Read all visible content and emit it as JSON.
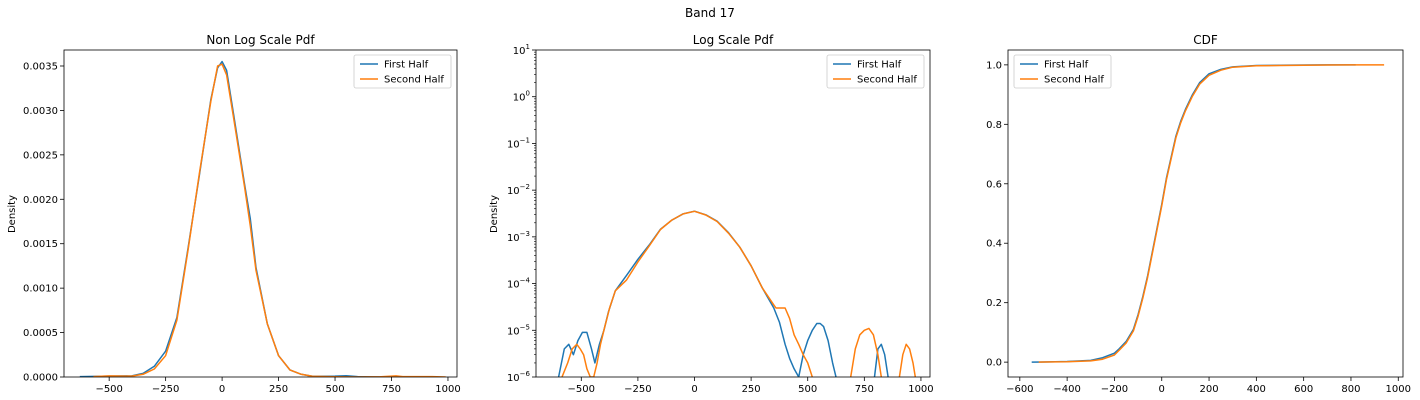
{
  "figure": {
    "title": "Band 17"
  },
  "colors": {
    "first": "#1f77b4",
    "second": "#ff7f0e"
  },
  "chart_data": [
    {
      "type": "line",
      "title": "Non Log Scale Pdf",
      "xlabel": "",
      "ylabel": "Density",
      "xlim": [
        -700,
        1040
      ],
      "ylim": [
        0,
        0.00368
      ],
      "xticks": [
        -500,
        -250,
        0,
        250,
        500,
        750,
        1000
      ],
      "xtick_labels": [
        "−500",
        "−250",
        "0",
        "250",
        "500",
        "750",
        "1000"
      ],
      "yticks": [
        0,
        0.0005,
        0.001,
        0.0015,
        0.002,
        0.0025,
        0.003,
        0.0035
      ],
      "ytick_labels": [
        "0.0000",
        "0.0005",
        "0.0010",
        "0.0015",
        "0.0020",
        "0.0025",
        "0.0030",
        "0.0035"
      ],
      "grid": false,
      "legend": "upper right",
      "series": [
        {
          "name": "First Half",
          "color": "#1f77b4",
          "x": [
            -630,
            -500,
            -400,
            -350,
            -300,
            -250,
            -200,
            -150,
            -100,
            -50,
            -20,
            0,
            20,
            50,
            100,
            125,
            150,
            200,
            250,
            300,
            350,
            400,
            500,
            550,
            600,
            700,
            800,
            850
          ],
          "y": [
            5e-06,
            1e-05,
            1.2e-05,
            4e-05,
            0.00012,
            0.00029,
            0.00067,
            0.00146,
            0.00228,
            0.00312,
            0.00348,
            0.00355,
            0.00345,
            0.00297,
            0.00216,
            0.00178,
            0.00123,
            0.0006,
            0.00024,
            8e-05,
            3e-05,
            8e-06,
            1e-05,
            1.5e-05,
            5e-06,
            0,
            3e-06,
            0
          ]
        },
        {
          "name": "Second Half",
          "color": "#ff7f0e",
          "x": [
            -570,
            -500,
            -400,
            -350,
            -300,
            -250,
            -200,
            -150,
            -100,
            -50,
            -20,
            0,
            20,
            50,
            100,
            125,
            150,
            200,
            250,
            300,
            350,
            400,
            500,
            600,
            700,
            770,
            800,
            930,
            990
          ],
          "y": [
            5e-06,
            1.2e-05,
            1e-05,
            3e-05,
            9e-05,
            0.00024,
            0.00064,
            0.00144,
            0.0023,
            0.0031,
            0.0035,
            0.00352,
            0.0034,
            0.00293,
            0.00213,
            0.0017,
            0.0012,
            0.0006,
            0.00024,
            8e-05,
            3e-05,
            8e-06,
            2e-06,
            0,
            2e-06,
            1.2e-05,
            5e-06,
            5e-06,
            0
          ]
        }
      ]
    },
    {
      "type": "line",
      "title": "Log Scale Pdf",
      "xlabel": "",
      "ylabel": "Density",
      "yscale": "log",
      "xlim": [
        -700,
        1040
      ],
      "ylim": [
        1e-06,
        10
      ],
      "xticks": [
        -500,
        -250,
        0,
        250,
        500,
        750,
        1000
      ],
      "xtick_labels": [
        "−500",
        "−250",
        "0",
        "250",
        "500",
        "750",
        "1000"
      ],
      "yticks": [
        1e-06,
        1e-05,
        0.0001,
        0.001,
        0.01,
        0.1,
        1,
        10
      ],
      "ytick_base": [
        "10",
        "10",
        "10",
        "10",
        "10",
        "10",
        "10",
        "10"
      ],
      "ytick_exp": [
        "−6",
        "−5",
        "−4",
        "−3",
        "−2",
        "−1",
        "0",
        "1"
      ],
      "grid": false,
      "legend": "upper right",
      "series": [
        {
          "name": "First Half",
          "color": "#1f77b4",
          "x": [
            -600,
            -575,
            -555,
            -535,
            -515,
            -495,
            -475,
            -455,
            -440,
            -420,
            -400,
            -380,
            -350,
            -300,
            -250,
            -200,
            -150,
            -100,
            -50,
            0,
            50,
            100,
            150,
            200,
            250,
            300,
            350,
            375,
            400,
            420,
            440,
            460,
            480,
            500,
            520,
            540,
            555,
            570,
            590,
            610,
            625
          ],
          "y": [
            1e-06,
            4e-06,
            5e-06,
            3e-06,
            6e-06,
            9e-06,
            9e-06,
            4e-06,
            2e-06,
            5e-06,
            1e-05,
            2.5e-05,
            7e-05,
            0.00015,
            0.00033,
            0.00067,
            0.00146,
            0.00228,
            0.00312,
            0.00355,
            0.00297,
            0.00216,
            0.00123,
            0.0006,
            0.00024,
            8e-05,
            3e-05,
            1.5e-05,
            5e-06,
            2.5e-06,
            1.5e-06,
            1e-06,
            3e-06,
            6e-06,
            1e-05,
            1.4e-05,
            1.4e-05,
            1.2e-05,
            6e-06,
            2e-06,
            1e-06
          ]
        },
        {
          "name": "First Half",
          "color": "#1f77b4",
          "x": [
            795,
            810,
            825,
            840,
            855
          ],
          "y": [
            1e-06,
            4e-06,
            5e-06,
            3e-06,
            1e-06
          ]
        },
        {
          "name": "Second Half",
          "color": "#ff7f0e",
          "x": [
            -585,
            -560,
            -540,
            -520,
            -505,
            -490,
            -475,
            -460,
            -445,
            -430,
            -415,
            -400,
            -375,
            -350,
            -300,
            -250,
            -200,
            -150,
            -100,
            -50,
            0,
            50,
            100,
            150,
            200,
            250,
            300,
            350,
            360,
            380,
            400,
            420,
            440,
            460,
            480,
            500,
            520
          ],
          "y": [
            1e-06,
            2e-06,
            4e-06,
            5e-06,
            4e-06,
            3e-06,
            1.5e-06,
            1e-06,
            1e-06,
            2e-06,
            5e-06,
            1e-05,
            3e-05,
            7e-05,
            0.00012,
            0.00029,
            0.00064,
            0.00144,
            0.0023,
            0.0031,
            0.00352,
            0.00293,
            0.00213,
            0.0012,
            0.0006,
            0.00024,
            8e-05,
            3.5e-05,
            3e-05,
            3e-05,
            3e-05,
            1.8e-05,
            8e-06,
            5e-06,
            3e-06,
            2e-06,
            1e-06
          ]
        },
        {
          "name": "Second Half",
          "color": "#ff7f0e",
          "x": [
            690,
            710,
            730,
            750,
            770,
            790,
            810,
            825
          ],
          "y": [
            1e-06,
            4e-06,
            8e-06,
            1e-05,
            1.1e-05,
            8e-06,
            3e-06,
            1e-06
          ]
        },
        {
          "name": "Second Half",
          "color": "#ff7f0e",
          "x": [
            905,
            920,
            935,
            950,
            965,
            975
          ],
          "y": [
            1e-06,
            3e-06,
            5e-06,
            4e-06,
            2e-06,
            1e-06
          ]
        }
      ]
    },
    {
      "type": "line",
      "title": "CDF",
      "xlabel": "",
      "ylabel": "",
      "xlim": [
        -650,
        1020
      ],
      "ylim": [
        -0.05,
        1.05
      ],
      "xticks": [
        -600,
        -400,
        -200,
        0,
        200,
        400,
        600,
        800,
        1000
      ],
      "xtick_labels": [
        "−600",
        "−400",
        "−200",
        "0",
        "200",
        "400",
        "600",
        "800",
        "1000"
      ],
      "yticks": [
        0,
        0.2,
        0.4,
        0.6,
        0.8,
        1
      ],
      "ytick_labels": [
        "0.0",
        "0.2",
        "0.4",
        "0.6",
        "0.8",
        "1.0"
      ],
      "grid": false,
      "legend": "upper left",
      "series": [
        {
          "name": "First Half",
          "color": "#1f77b4",
          "x": [
            -550,
            -500,
            -400,
            -300,
            -250,
            -200,
            -180,
            -150,
            -120,
            -100,
            -80,
            -60,
            -40,
            -20,
            0,
            20,
            40,
            60,
            80,
            100,
            130,
            160,
            200,
            250,
            300,
            400,
            500,
            600,
            700,
            820
          ],
          "y": [
            0,
            0.0005,
            0.002,
            0.006,
            0.015,
            0.03,
            0.045,
            0.07,
            0.11,
            0.16,
            0.22,
            0.29,
            0.37,
            0.45,
            0.53,
            0.62,
            0.69,
            0.76,
            0.81,
            0.85,
            0.9,
            0.94,
            0.97,
            0.985,
            0.993,
            0.998,
            0.999,
            0.9995,
            1.0,
            1.0
          ]
        },
        {
          "name": "Second Half",
          "color": "#ff7f0e",
          "x": [
            -520,
            -500,
            -400,
            -300,
            -250,
            -200,
            -180,
            -150,
            -120,
            -100,
            -80,
            -60,
            -40,
            -20,
            0,
            20,
            40,
            60,
            80,
            100,
            130,
            160,
            200,
            250,
            300,
            400,
            500,
            600,
            700,
            800,
            940
          ],
          "y": [
            0,
            0.0005,
            0.001,
            0.004,
            0.01,
            0.024,
            0.04,
            0.065,
            0.105,
            0.155,
            0.215,
            0.285,
            0.365,
            0.445,
            0.525,
            0.615,
            0.685,
            0.755,
            0.805,
            0.845,
            0.895,
            0.935,
            0.965,
            0.982,
            0.992,
            0.997,
            0.998,
            0.999,
            0.9995,
            1.0,
            1.0
          ]
        }
      ]
    }
  ]
}
